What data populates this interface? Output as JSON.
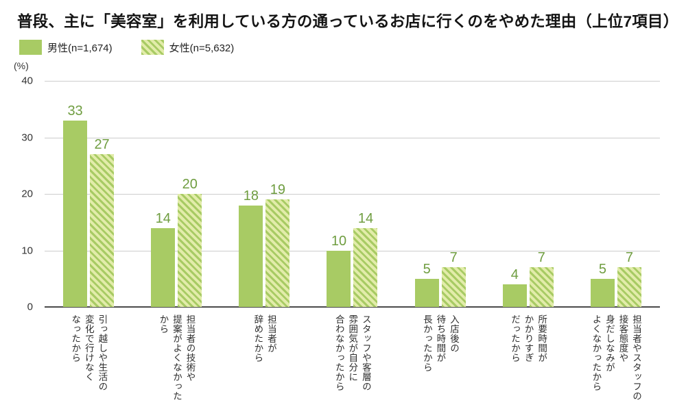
{
  "title": "普段、主に「美容室」を利用している方の通っているお店に行くのをやめた理由（上位7項目）",
  "legend": {
    "male": "男性(n=1,674)",
    "female": "女性(n=5,632)"
  },
  "y_axis": {
    "unit": "(%)",
    "ticks": [
      "40",
      "30",
      "20",
      "10",
      "0"
    ]
  },
  "chart_data": {
    "type": "bar",
    "title": "普段、主に「美容室」を利用している方の通っているお店に行くのをやめた理由（上位7項目）",
    "categories": [
      "引っ越しや生活の変化で行けなくなったから",
      "担当者の技術や提案がよくなかったから",
      "担当者が辞めたから",
      "スタッフや客層の雰囲気が自分に合わなかったから",
      "入店後の待ち時間が長かったから",
      "所要時間がかかりすぎだったから",
      "担当者やスタッフの接客態度や身だしなみがよくなかったから"
    ],
    "categories_display": [
      "引っ越しや生活の\n変化で行けなく\nなったから",
      "担当者の技術や\n提案がよくなかった\nから",
      "担当者が\n辞めたから",
      "スタッフや客層の\n雰囲気が自分に\n合わなかったから",
      "入店後の\n待ち時間が\n長かったから",
      "所要時間が\nかかりすぎ\nだったから",
      "担当者やスタッフの\n接客態度や\n身だしなみが\nよくなかったから"
    ],
    "series": [
      {
        "name": "男性(n=1,674)",
        "values": [
          33,
          14,
          18,
          10,
          5,
          4,
          5
        ]
      },
      {
        "name": "女性(n=5,632)",
        "values": [
          27,
          20,
          19,
          14,
          7,
          7,
          7
        ]
      }
    ],
    "xlabel": "",
    "ylabel": "(%)",
    "ylim": [
      0,
      40
    ],
    "grid": true,
    "legend_position": "top-left",
    "colors": {
      "male_bar": "#a8cb64",
      "female_bar_bg": "#e2ecaa",
      "female_bar_stripe": "#a8cb64",
      "value_label": "#6f9d40",
      "gridline": "#cccccc",
      "axis_line": "#4a4a4a"
    }
  }
}
